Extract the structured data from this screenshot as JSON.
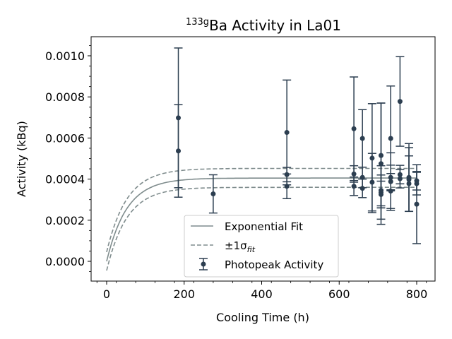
{
  "chart_data": {
    "type": "scatter",
    "title_sup": "133g",
    "title_rest": "Ba Activity in La01",
    "xlabel": "Cooling Time (h)",
    "ylabel": "Activity (kBq)",
    "xlim": [
      -40,
      845
    ],
    "ylim": [
      -0.0001,
      0.0011
    ],
    "xticks": [
      0,
      200,
      400,
      600,
      800
    ],
    "yticks": [
      0.0,
      0.0002,
      0.0004,
      0.0006,
      0.0008,
      0.001
    ],
    "xtick_labels": [
      "0",
      "200",
      "400",
      "600",
      "800"
    ],
    "ytick_labels": [
      "0.0000",
      "0.0002",
      "0.0004",
      "0.0006",
      "0.0008",
      "0.0010"
    ],
    "legend_position": "lower-center",
    "colors": {
      "data": "#2c3e50",
      "fit": "#7f8c8d"
    },
    "fit": {
      "name": "Exponential Fit",
      "model": "A*(1-exp(-lambda*t))",
      "A": 0.000405,
      "lambda": 0.0192,
      "upper": {
        "A": 0.000452,
        "offset": 4.5e-05
      },
      "lower": {
        "A": 0.00036,
        "offset": -4.5e-05
      }
    },
    "band_name_pre": "±1σ",
    "band_name_sub": "fit",
    "series": [
      {
        "name": "Photopeak Activity",
        "points": [
          {
            "x": 185,
            "y": 0.000698,
            "err": 0.00034
          },
          {
            "x": 185,
            "y": 0.000537,
            "err": 0.000225
          },
          {
            "x": 275,
            "y": 0.000328,
            "err": 9.3e-05
          },
          {
            "x": 465,
            "y": 0.000627,
            "err": 0.000255
          },
          {
            "x": 465,
            "y": 0.000422,
            "err": 3.5e-05
          },
          {
            "x": 465,
            "y": 0.000365,
            "err": 6e-05
          },
          {
            "x": 638,
            "y": 0.000645,
            "err": 0.000252
          },
          {
            "x": 638,
            "y": 0.000425,
            "err": 4e-05
          },
          {
            "x": 638,
            "y": 0.000365,
            "err": 4.5e-05
          },
          {
            "x": 660,
            "y": 0.000598,
            "err": 0.00014
          },
          {
            "x": 660,
            "y": 0.000408,
            "err": 5e-05
          },
          {
            "x": 660,
            "y": 0.000355,
            "err": 4.5e-05
          },
          {
            "x": 685,
            "y": 0.000502,
            "err": 0.000265
          },
          {
            "x": 685,
            "y": 0.000385,
            "err": 0.00014
          },
          {
            "x": 708,
            "y": 0.000515,
            "err": 0.000255
          },
          {
            "x": 708,
            "y": 0.000475,
            "err": 0.000295
          },
          {
            "x": 708,
            "y": 0.000345,
            "err": 7.5e-05
          },
          {
            "x": 708,
            "y": 0.000335,
            "err": 0.00013
          },
          {
            "x": 708,
            "y": 0.000325,
            "err": 6.5e-05
          },
          {
            "x": 733,
            "y": 0.000598,
            "err": 0.000255
          },
          {
            "x": 733,
            "y": 0.000408,
            "err": 6e-05
          },
          {
            "x": 733,
            "y": 0.000388,
            "err": 0.00014
          },
          {
            "x": 733,
            "y": 0.000342,
            "err": 8.5e-05
          },
          {
            "x": 757,
            "y": 0.000778,
            "err": 0.000218
          },
          {
            "x": 757,
            "y": 0.000422,
            "err": 4.5e-05
          },
          {
            "x": 757,
            "y": 0.000402,
            "err": 4.5e-05
          },
          {
            "x": 780,
            "y": 0.000408,
            "err": 0.000165
          },
          {
            "x": 780,
            "y": 0.000398,
            "err": 0.000155
          },
          {
            "x": 780,
            "y": 0.000378,
            "err": 0.000135
          },
          {
            "x": 800,
            "y": 0.000392,
            "err": 4.5e-05
          },
          {
            "x": 800,
            "y": 0.000378,
            "err": 5.5e-05
          },
          {
            "x": 800,
            "y": 0.000278,
            "err": 0.000192
          }
        ]
      }
    ]
  }
}
